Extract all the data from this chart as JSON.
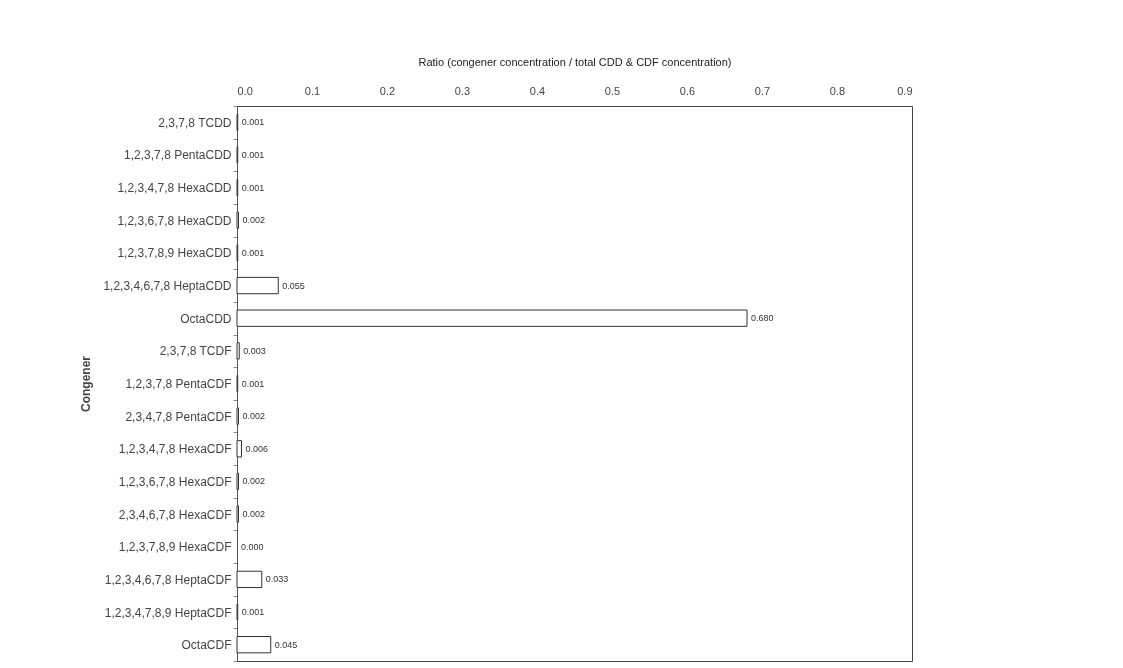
{
  "chart_data": {
    "type": "bar",
    "orientation": "horizontal",
    "xlabel": "Ratio (congener concentration / total CDD & CDF concentration)",
    "ylabel": "Congener",
    "categories": [
      "2,3,7,8 TCDD",
      "1,2,3,7,8 PentaCDD",
      "1,2,3,4,7,8 HexaCDD",
      "1,2,3,6,7,8 HexaCDD",
      "1,2,3,7,8,9 HexaCDD",
      "1,2,3,4,6,7,8 HeptaCDD",
      "OctaCDD",
      "2,3,7,8 TCDF",
      "1,2,3,7,8 PentaCDF",
      "2,3,4,7,8 PentaCDF",
      "1,2,3,4,7,8 HexaCDF",
      "1,2,3,6,7,8 HexaCDF",
      "2,3,4,6,7,8 HexaCDF",
      "1,2,3,7,8,9 HexaCDF",
      "1,2,3,4,6,7,8 HeptaCDF",
      "1,2,3,4,7,8,9 HeptaCDF",
      "OctaCDF"
    ],
    "values": [
      0.001,
      0.001,
      0.001,
      0.002,
      0.001,
      0.055,
      0.68,
      0.003,
      0.001,
      0.002,
      0.006,
      0.002,
      0.002,
      0.0,
      0.033,
      0.001,
      0.045
    ],
    "value_labels": [
      "0.001",
      "0.001",
      "0.001",
      "0.002",
      "0.001",
      "0.055",
      "0.680",
      "0.003",
      "0.001",
      "0.002",
      "0.006",
      "0.002",
      "0.002",
      "0.000",
      "0.033",
      "0.001",
      "0.045"
    ],
    "color": "#ffffff",
    "xlim": [
      0,
      0.9
    ],
    "xticks": [
      {
        "value": 0,
        "label": "0.0"
      },
      0.1,
      0.2,
      0.3,
      0.4,
      0.5,
      0.6,
      0.7,
      0.8,
      0.9
    ],
    "grid": false
  }
}
